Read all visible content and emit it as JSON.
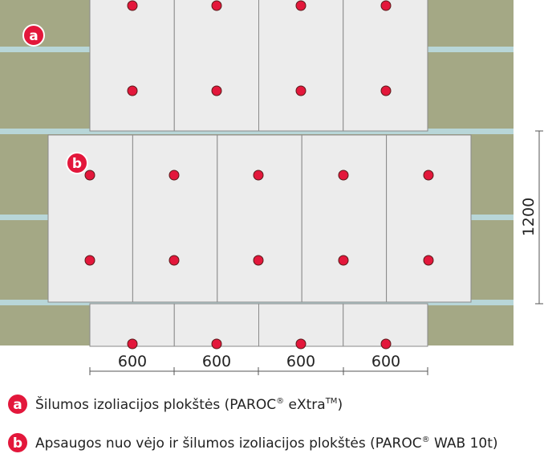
{
  "markers": {
    "a": "a",
    "b": "b"
  },
  "dimensions": {
    "widths": [
      "600",
      "600",
      "600",
      "600"
    ],
    "height": "1200"
  },
  "legend": [
    {
      "marker": "a",
      "text": "Šilumos izoliacijos plokštės (PAROC",
      "sup1": "®",
      "text2": " eXtra",
      "sup2": "TM",
      "text3": ")"
    },
    {
      "marker": "b",
      "text": "Apsaugos nuo vėjo ir šilumos izoliacijos plokštės (PAROC",
      "sup1": "®",
      "text2": " WAB 10t)"
    }
  ]
}
